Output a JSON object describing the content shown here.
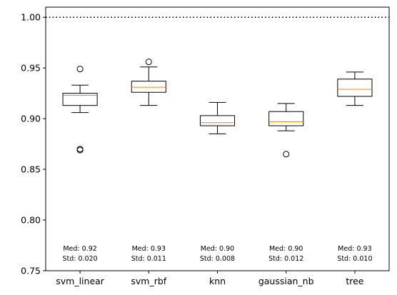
{
  "chart_data": {
    "type": "box",
    "title": "",
    "xlabel": "",
    "ylabel": "",
    "ylim": [
      0.75,
      1.01
    ],
    "yticks": [
      "0.75",
      "0.80",
      "0.85",
      "0.90",
      "0.95",
      "1.00"
    ],
    "reference_line": {
      "y": 1.0,
      "style": "dotted",
      "color": "#000000"
    },
    "median_color": "#ff7f0e",
    "box_color": "#000000",
    "grid": false,
    "categories": [
      "svm_linear",
      "svm_rbf",
      "knn",
      "gaussian_nb",
      "tree"
    ],
    "boxes": [
      {
        "name": "svm_linear",
        "whisker_low": 0.906,
        "q1": 0.913,
        "median": 0.923,
        "q3": 0.925,
        "whisker_high": 0.933,
        "outliers": [
          0.949,
          0.87,
          0.869
        ],
        "annotation": [
          "Med: 0.92",
          "Std: 0.020"
        ]
      },
      {
        "name": "svm_rbf",
        "whisker_low": 0.913,
        "q1": 0.926,
        "median": 0.931,
        "q3": 0.937,
        "whisker_high": 0.951,
        "outliers": [
          0.956
        ],
        "annotation": [
          "Med: 0.93",
          "Std: 0.011"
        ]
      },
      {
        "name": "knn",
        "whisker_low": 0.885,
        "q1": 0.893,
        "median": 0.896,
        "q3": 0.903,
        "whisker_high": 0.916,
        "outliers": [],
        "annotation": [
          "Med: 0.90",
          "Std: 0.008"
        ]
      },
      {
        "name": "gaussian_nb",
        "whisker_low": 0.888,
        "q1": 0.893,
        "median": 0.897,
        "q3": 0.907,
        "whisker_high": 0.915,
        "outliers": [
          0.865
        ],
        "annotation": [
          "Med: 0.90",
          "Std: 0.012"
        ]
      },
      {
        "name": "tree",
        "whisker_low": 0.913,
        "q1": 0.922,
        "median": 0.929,
        "q3": 0.939,
        "whisker_high": 0.946,
        "outliers": [],
        "annotation": [
          "Med: 0.93",
          "Std: 0.010"
        ]
      }
    ]
  }
}
